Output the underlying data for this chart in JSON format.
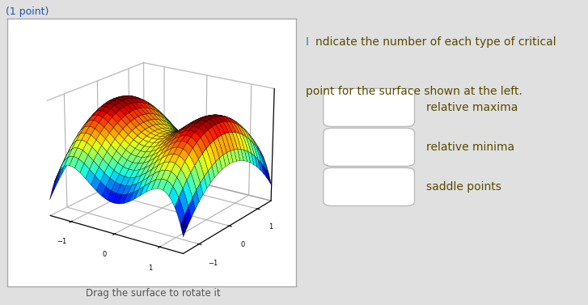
{
  "title_text": "(1 point)",
  "title_color": "#2255aa",
  "surface_caption": "Drag the surface to rotate it",
  "surface_caption_color": "#555555",
  "right_title_I_text": "I",
  "right_title_I_color": "#1a8a8a",
  "right_title_rest1": "ndicate the number of each type of critical",
  "right_title_line2": "point for the surface shown at the left.",
  "right_title_color": "#5a4a00",
  "labels": [
    "relative maxima",
    "relative minima",
    "saddle points"
  ],
  "label_color": "#5a4a00",
  "box_facecolor": "#ffffff",
  "box_edgecolor": "#bbbbbb",
  "background_color": "#e0e0e0",
  "plot_background": "#ffffff",
  "elev": 20,
  "azim": -55
}
